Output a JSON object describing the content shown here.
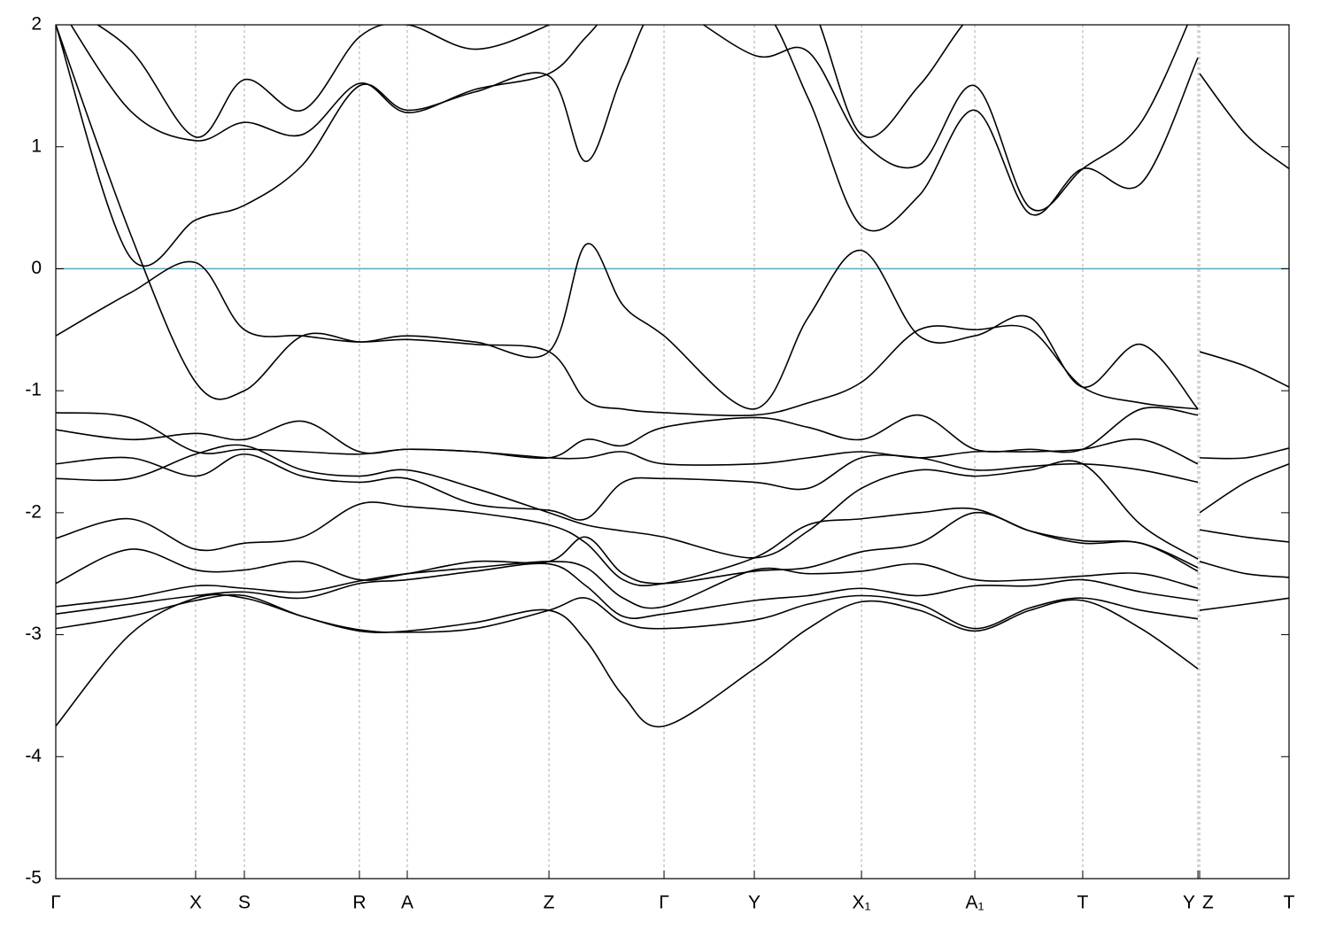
{
  "chart_data": {
    "type": "line",
    "x": [
      0,
      0.06,
      0.1134,
      0.1529,
      0.2,
      0.2462,
      0.285,
      0.34,
      0.3999,
      0.43,
      0.46,
      0.4932,
      0.5664,
      0.61,
      0.6533,
      0.7,
      0.7452,
      0.79,
      0.8327,
      0.88,
      0.9261,
      0.9268,
      0.9275,
      0.965,
      1
    ],
    "xlim": [
      0,
      1
    ],
    "xticks": [
      {
        "value": 0,
        "label": "Γ"
      },
      {
        "value": 0.1134,
        "label": "X"
      },
      {
        "value": 0.1529,
        "label": "S"
      },
      {
        "value": 0.2462,
        "label": "R"
      },
      {
        "value": 0.285,
        "label": "A"
      },
      {
        "value": 0.3999,
        "label": "Z"
      },
      {
        "value": 0.4932,
        "label": "Γ"
      },
      {
        "value": 0.5664,
        "label": "Y"
      },
      {
        "value": 0.6533,
        "label": "X₁"
      },
      {
        "value": 0.7452,
        "label": "A₁"
      },
      {
        "value": 0.8327,
        "label": "T"
      },
      {
        "value": 0.9261,
        "label": "Y"
      },
      {
        "value": 0.9275,
        "label": "Z"
      },
      {
        "value": 1,
        "label": "T"
      }
    ],
    "ylim": [
      -5,
      2
    ],
    "yticks": [
      -5,
      -4,
      -3,
      -2,
      -1,
      0,
      1,
      2
    ],
    "grid": true,
    "fermi_level": 0,
    "fermi_color": "#5aa7c0",
    "color": "#000000",
    "series": [
      {
        "values": [
          -3.75,
          -3.0,
          -2.7,
          -2.7,
          -2.85,
          -2.97,
          -2.97,
          -2.9,
          -2.8,
          -3.05,
          -3.5,
          -3.75,
          -3.28,
          -2.95,
          -2.73,
          -2.8,
          -2.97,
          -2.8,
          -2.72,
          -2.95,
          -3.28,
          null,
          -2.8,
          -2.75,
          -2.7
        ]
      },
      {
        "values": [
          -2.95,
          -2.85,
          -2.72,
          -2.68,
          -2.85,
          -2.96,
          -2.98,
          -2.95,
          -2.8,
          -2.7,
          -2.9,
          -2.95,
          -2.88,
          -2.75,
          -2.68,
          -2.75,
          -2.95,
          -2.78,
          -2.7,
          -2.8,
          -2.87,
          null,
          -2.4,
          -2.5,
          -2.53
        ]
      },
      {
        "values": [
          -2.83,
          -2.75,
          -2.68,
          -2.65,
          -2.7,
          -2.58,
          -2.55,
          -2.48,
          -2.42,
          -2.6,
          -2.85,
          -2.83,
          -2.72,
          -2.68,
          -2.62,
          -2.68,
          -2.6,
          -2.6,
          -2.55,
          -2.65,
          -2.72,
          null,
          -2.14,
          -2.2,
          -2.24
        ]
      },
      {
        "values": [
          -2.77,
          -2.7,
          -2.6,
          -2.62,
          -2.65,
          -2.56,
          -2.5,
          -2.45,
          -2.4,
          -2.45,
          -2.7,
          -2.77,
          -2.47,
          -2.5,
          -2.48,
          -2.42,
          -2.55,
          -2.55,
          -2.52,
          -2.5,
          -2.62,
          null,
          -2.0,
          -1.75,
          -1.6
        ]
      },
      {
        "values": [
          -2.58,
          -2.3,
          -2.47,
          -2.47,
          -2.4,
          -2.55,
          -2.5,
          -2.4,
          -2.4,
          -2.2,
          -2.5,
          -2.58,
          -2.48,
          -2.45,
          -2.32,
          -2.25,
          -2.0,
          -2.15,
          -2.23,
          -2.25,
          -2.45,
          null,
          -1.55,
          -1.55,
          -1.47
        ]
      },
      {
        "values": [
          -2.21,
          -2.05,
          -2.3,
          -2.25,
          -2.2,
          -1.93,
          -1.95,
          -2.0,
          -2.1,
          -2.25,
          -2.55,
          -2.58,
          -2.37,
          -2.1,
          -2.05,
          -2.0,
          -1.97,
          -2.15,
          -2.25,
          -2.25,
          -2.48,
          null,
          -0.68,
          -0.8,
          -0.97
        ]
      },
      {
        "values": [
          -1.72,
          -1.72,
          -1.52,
          -1.45,
          -1.65,
          -1.7,
          -1.65,
          -1.8,
          -2.0,
          -2.1,
          -2.15,
          -2.2,
          -2.37,
          -2.15,
          -1.8,
          -1.65,
          -1.7,
          -1.65,
          -1.6,
          -2.1,
          -2.38,
          null,
          1.6,
          1.1,
          0.82
        ]
      },
      {
        "values": [
          -1.6,
          -1.55,
          -1.7,
          -1.52,
          -1.7,
          -1.75,
          -1.72,
          -1.93,
          -1.98,
          -2.05,
          -1.75,
          -1.72,
          -1.75,
          -1.8,
          -1.55,
          -1.55,
          -1.65,
          -1.62,
          -1.6,
          -1.65,
          -1.75,
          null,
          null,
          null,
          null
        ]
      },
      {
        "values": [
          -1.32,
          -1.4,
          -1.35,
          -1.4,
          -1.25,
          -1.5,
          -1.48,
          -1.5,
          -1.55,
          -1.4,
          -1.45,
          -1.3,
          -1.22,
          -1.3,
          -1.4,
          -1.2,
          -1.48,
          -1.48,
          -1.48,
          -1.15,
          -1.2,
          null,
          null,
          null,
          null
        ]
      },
      {
        "values": [
          -1.18,
          -1.22,
          -1.5,
          -1.48,
          -1.5,
          -1.52,
          -1.48,
          -1.5,
          -1.55,
          -1.55,
          -1.5,
          -1.6,
          -1.6,
          -1.55,
          -1.5,
          -1.55,
          -1.5,
          -1.5,
          -1.48,
          -1.4,
          -1.6,
          null,
          null,
          null,
          null
        ]
      },
      {
        "values": [
          -0.55,
          -0.2,
          0.05,
          -0.5,
          -0.55,
          -0.6,
          -0.55,
          -0.6,
          -0.68,
          0.2,
          -0.3,
          -0.55,
          -1.15,
          -0.4,
          0.15,
          -0.55,
          -0.55,
          -0.4,
          -0.97,
          -0.62,
          -1.15,
          null,
          null,
          null,
          null
        ]
      },
      {
        "values": [
          2.0,
          0.3,
          -0.93,
          -1.0,
          -0.55,
          -0.6,
          -0.58,
          -0.62,
          -0.68,
          -1.08,
          -1.15,
          -1.18,
          -1.2,
          -1.1,
          -0.93,
          -0.5,
          -0.5,
          -0.5,
          -0.97,
          -1.1,
          -1.15,
          null,
          null,
          null,
          null
        ]
      },
      {
        "values": [
          2.0,
          0.1,
          0.4,
          0.52,
          0.85,
          1.5,
          1.3,
          1.45,
          1.58,
          0.88,
          1.6,
          2.2,
          2.2,
          1.4,
          0.35,
          0.6,
          1.3,
          0.45,
          0.82,
          0.7,
          1.73,
          null,
          null,
          null,
          null
        ]
      },
      {
        "values": [
          2.2,
          1.3,
          1.05,
          1.2,
          1.1,
          1.52,
          1.28,
          1.47,
          1.6,
          1.9,
          2.2,
          2.2,
          1.75,
          1.78,
          1.05,
          0.85,
          1.5,
          0.5,
          0.82,
          1.2,
          2.2,
          null,
          null,
          null,
          null
        ]
      },
      {
        "values": [
          2.2,
          1.8,
          1.08,
          1.55,
          1.3,
          1.9,
          2.0,
          1.8,
          2.0,
          2.2,
          2.2,
          2.2,
          2.2,
          2.2,
          1.1,
          1.5,
          2.1,
          2.2,
          2.2,
          2.2,
          2.2,
          null,
          null,
          null,
          null
        ]
      }
    ]
  }
}
